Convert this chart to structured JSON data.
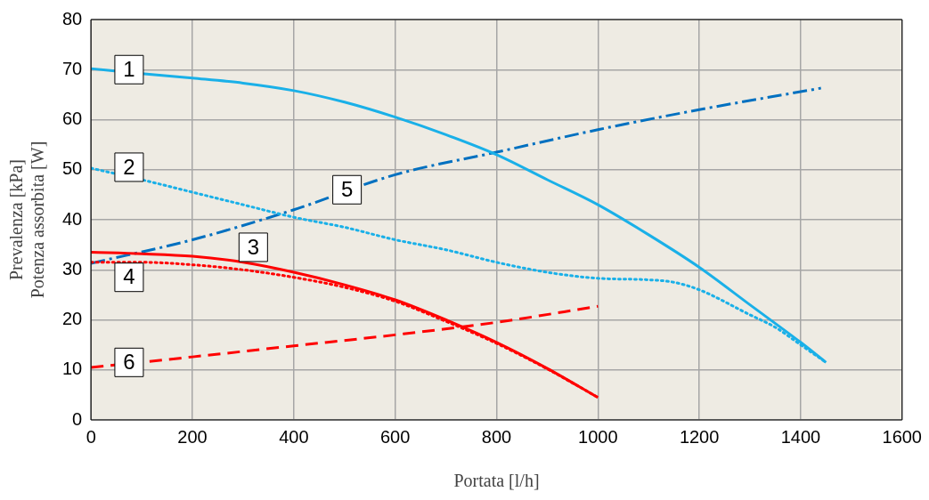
{
  "chart_data": {
    "type": "line",
    "xlabel": "Portata [l/h]",
    "ylabel": "Prevalenza [kPa]\nPotenza assorbita [W]",
    "xlim": [
      0,
      1600
    ],
    "xticks": [
      0,
      200,
      400,
      600,
      800,
      1000,
      1200,
      1400,
      1600
    ],
    "ylim": [
      0,
      80
    ],
    "yticks": [
      0,
      10,
      20,
      30,
      40,
      50,
      60,
      70,
      80
    ],
    "grid": true,
    "legend": false,
    "marker": "none",
    "series": [
      {
        "color": "#1ab0e8",
        "line_style": "solid",
        "x": [
          0,
          100,
          200,
          300,
          400,
          500,
          600,
          700,
          800,
          900,
          1000,
          1100,
          1200,
          1300,
          1400,
          1450
        ],
        "values": [
          70.2,
          69.2,
          68.3,
          67.3,
          65.8,
          63.5,
          60.5,
          57,
          53,
          48,
          43,
          37,
          30.5,
          23,
          15.5,
          11.5
        ]
      },
      {
        "color": "#1ab0e8",
        "line_style": "dotted",
        "x": [
          0,
          100,
          200,
          300,
          400,
          500,
          600,
          700,
          800,
          900,
          1000,
          1100,
          1150,
          1200,
          1300,
          1350,
          1400,
          1450
        ],
        "values": [
          50.3,
          48,
          45.5,
          43,
          40.5,
          38.5,
          36,
          34,
          31.5,
          29.5,
          28.3,
          28,
          27.5,
          26,
          21,
          18.5,
          15,
          11.5
        ]
      },
      {
        "color": "#ff0000",
        "line_style": "solid",
        "x": [
          0,
          100,
          200,
          300,
          400,
          500,
          600,
          700,
          800,
          900,
          1000
        ],
        "values": [
          33.5,
          33.2,
          32.7,
          31.5,
          29.5,
          27,
          24,
          20,
          15.5,
          10.3,
          4.5
        ]
      },
      {
        "color": "#ff0000",
        "line_style": "dotted",
        "x": [
          0,
          100,
          200,
          300,
          400,
          500,
          600,
          700,
          800,
          900,
          1000
        ],
        "values": [
          31.5,
          31.5,
          31,
          30,
          28.5,
          26.5,
          23.7,
          19.7,
          15.3,
          10.2,
          4.5
        ]
      },
      {
        "color": "#0070c0",
        "line_style": "dashdot",
        "x": [
          0,
          200,
          400,
          600,
          800,
          1000,
          1200,
          1440
        ],
        "values": [
          31.3,
          36,
          42,
          49,
          53.5,
          58,
          62,
          66.3
        ]
      },
      {
        "color": "#ff0000",
        "line_style": "dashed",
        "x": [
          0,
          200,
          400,
          600,
          800,
          1000
        ],
        "values": [
          10.5,
          12.6,
          14.8,
          17,
          19.5,
          22.7
        ]
      }
    ],
    "annotations": [
      {
        "text": "1",
        "x": 75,
        "y": 70
      },
      {
        "text": "2",
        "x": 75,
        "y": 50.5
      },
      {
        "text": "3",
        "x": 320,
        "y": 34.5
      },
      {
        "text": "4",
        "x": 75,
        "y": 28.5
      },
      {
        "text": "5",
        "x": 505,
        "y": 46
      },
      {
        "text": "6",
        "x": 75,
        "y": 11.5
      }
    ]
  }
}
